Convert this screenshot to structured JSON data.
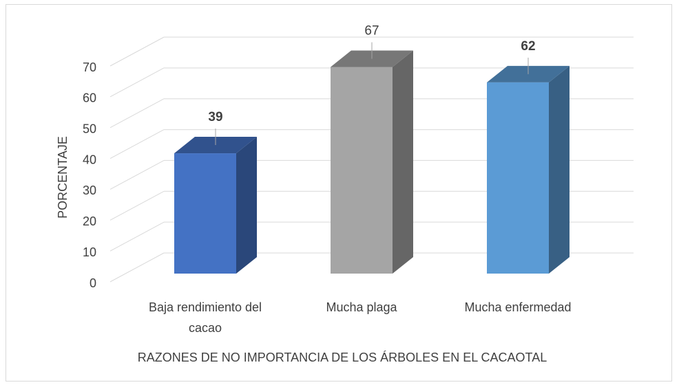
{
  "chart_data": {
    "type": "bar3d",
    "categories": [
      "Baja rendimiento del cacao",
      "Mucha plaga",
      "Mucha enfermedad"
    ],
    "values": [
      39,
      67,
      62
    ],
    "colors": [
      "#4472c4",
      "#a5a5a5",
      "#5b9bd5"
    ],
    "ylim": [
      0,
      70
    ],
    "yticks": [
      0,
      10,
      20,
      30,
      40,
      50,
      60,
      70
    ],
    "ylabel": "PORCENTAJE",
    "xlabel": "RAZONES DE NO IMPORTANCIA DE LOS ÁRBOLES EN EL CACAOTAL",
    "grid": true
  }
}
